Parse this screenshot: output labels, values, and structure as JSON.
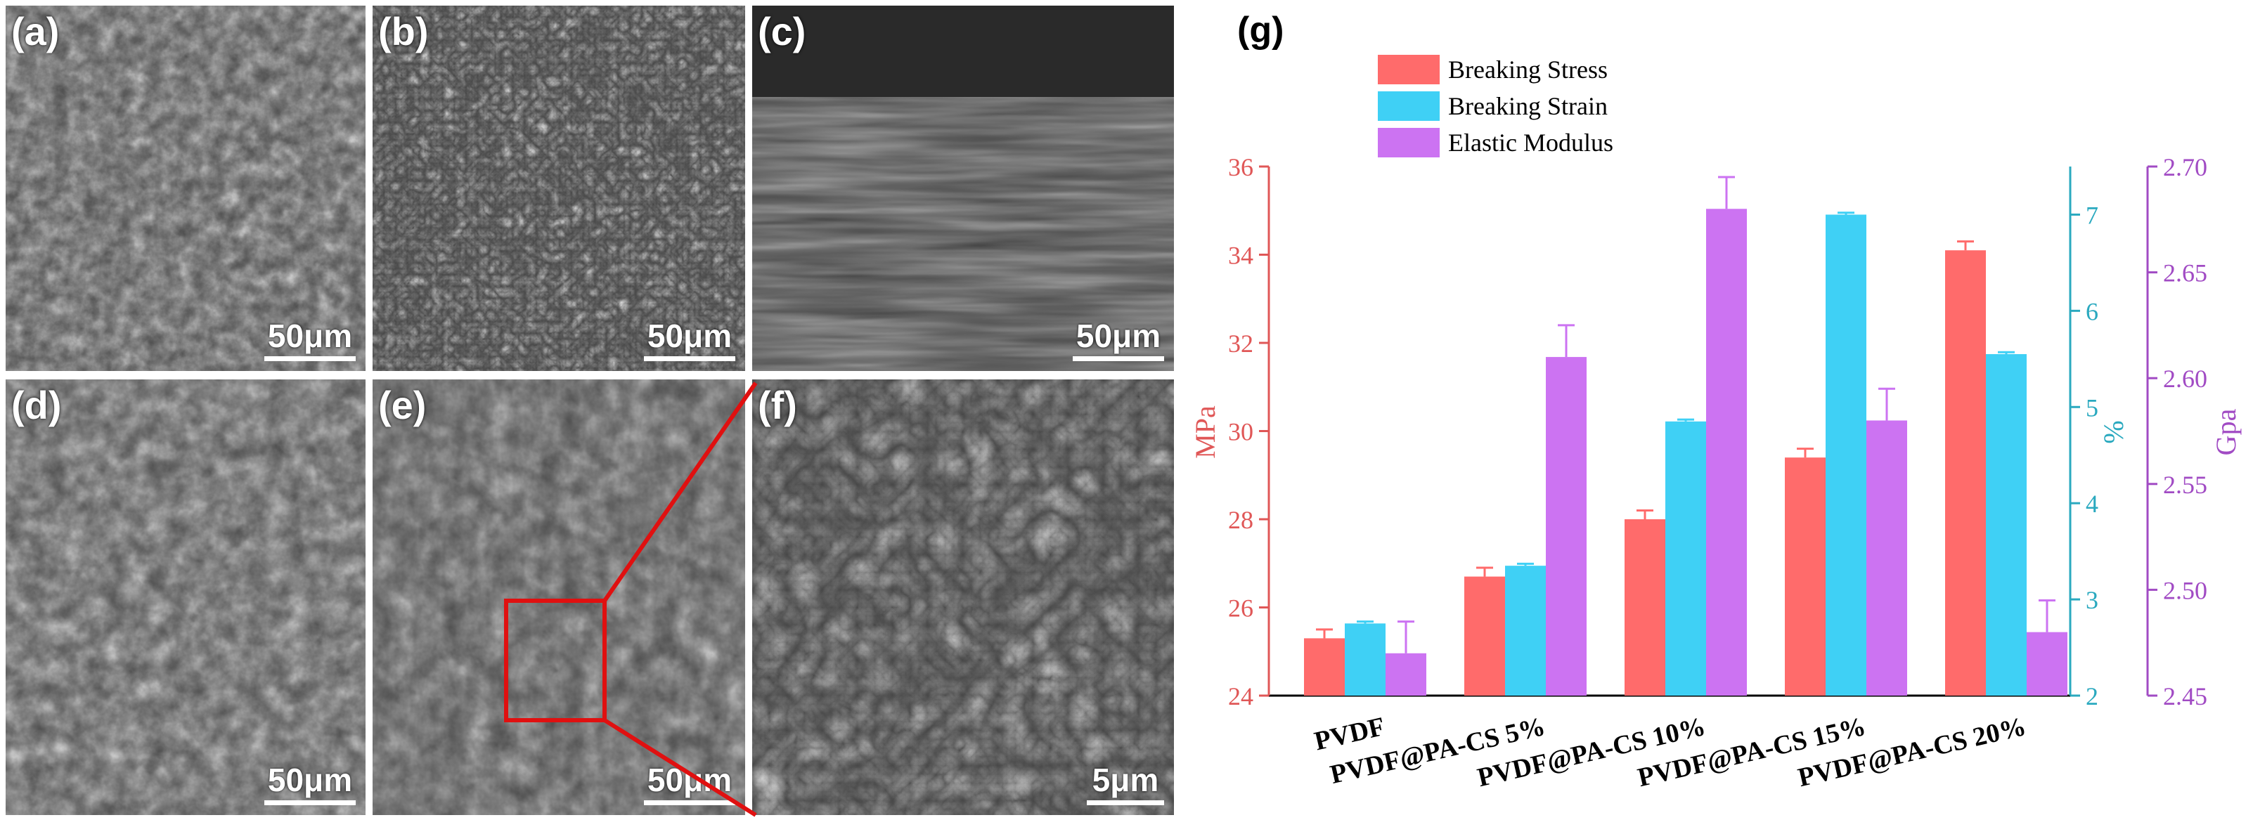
{
  "sem_panels": [
    {
      "id": "a",
      "label": "(a)",
      "scale": "50μm"
    },
    {
      "id": "b",
      "label": "(b)",
      "scale": "50μm"
    },
    {
      "id": "c",
      "label": "(c)",
      "scale": "50μm"
    },
    {
      "id": "d",
      "label": "(d)",
      "scale": "50μm"
    },
    {
      "id": "e",
      "label": "(e)",
      "scale": "50μm"
    },
    {
      "id": "f",
      "label": "(f)",
      "scale": "5μm"
    }
  ],
  "colors": {
    "stress": "#ff6b6b",
    "strain": "#3fd0f5",
    "modulus": "#cc73f2",
    "axis_left": "#e05757",
    "axis_mid": "#2aa9bf",
    "axis_right": "#a14bc4",
    "zoom_box": "#e01010"
  },
  "chart_data": {
    "type": "bar",
    "panel_label": "(g)",
    "categories": [
      "PVDF",
      "PVDF@PA-CS 5%",
      "PVDF@PA-CS 10%",
      "PVDF@PA-CS 15%",
      "PVDF@PA-CS 20%"
    ],
    "series": [
      {
        "name": "Breaking Stress",
        "axis": "left",
        "values": [
          25.3,
          26.7,
          28.0,
          29.4,
          34.1
        ],
        "errors": [
          0.2,
          0.2,
          0.2,
          0.2,
          0.2
        ]
      },
      {
        "name": "Breaking Strain",
        "axis": "middle",
        "values": [
          2.75,
          3.35,
          4.85,
          7.0,
          5.55
        ],
        "errors": [
          0.02,
          0.02,
          0.02,
          0.02,
          0.02
        ]
      },
      {
        "name": "Elastic Modulus",
        "axis": "right",
        "values": [
          2.47,
          2.61,
          2.68,
          2.58,
          2.48
        ],
        "errors": [
          0.015,
          0.015,
          0.015,
          0.015,
          0.015
        ]
      }
    ],
    "axes": {
      "left": {
        "label": "MPa",
        "ylim": [
          24,
          36
        ],
        "ticks": [
          "24",
          "26",
          "28",
          "30",
          "32",
          "34",
          "36"
        ]
      },
      "middle": {
        "label": "%",
        "ylim": [
          2,
          7.5
        ],
        "ticks": [
          "2",
          "3",
          "4",
          "5",
          "6",
          "7"
        ]
      },
      "right": {
        "label": "Gpa",
        "ylim": [
          2.45,
          2.7
        ],
        "ticks": [
          "2.45",
          "2.50",
          "2.55",
          "2.60",
          "2.65",
          "2.70"
        ]
      }
    },
    "legend_position": "top-left",
    "grid": false
  }
}
